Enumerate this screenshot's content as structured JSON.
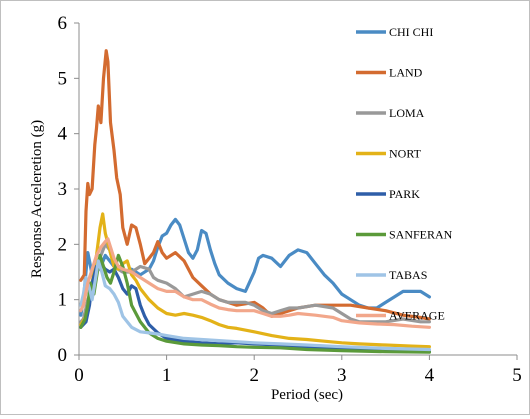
{
  "chart_data": {
    "type": "line",
    "title": "",
    "xlabel": "Period (sec)",
    "ylabel": "Response Acceleretion (g)",
    "xlim": [
      0,
      5
    ],
    "ylim": [
      0,
      6
    ],
    "xticks": [
      "0",
      "1",
      "2",
      "3",
      "4",
      "5"
    ],
    "yticks": [
      "0",
      "1",
      "2",
      "3",
      "4",
      "5",
      "6"
    ],
    "grid": false,
    "legend_placement": "right",
    "series": [
      {
        "name": "CHI CHI",
        "color": "#4a8bc4",
        "points": [
          [
            0.02,
            0.72
          ],
          [
            0.05,
            1.0
          ],
          [
            0.08,
            1.5
          ],
          [
            0.1,
            1.85
          ],
          [
            0.12,
            1.7
          ],
          [
            0.15,
            1.45
          ],
          [
            0.2,
            1.5
          ],
          [
            0.25,
            1.6
          ],
          [
            0.3,
            1.8
          ],
          [
            0.35,
            1.7
          ],
          [
            0.4,
            1.6
          ],
          [
            0.5,
            1.5
          ],
          [
            0.6,
            1.55
          ],
          [
            0.7,
            1.45
          ],
          [
            0.8,
            1.55
          ],
          [
            0.85,
            1.7
          ],
          [
            0.9,
            1.95
          ],
          [
            0.95,
            2.15
          ],
          [
            1.0,
            2.2
          ],
          [
            1.05,
            2.35
          ],
          [
            1.1,
            2.45
          ],
          [
            1.15,
            2.35
          ],
          [
            1.2,
            2.1
          ],
          [
            1.25,
            1.85
          ],
          [
            1.3,
            1.75
          ],
          [
            1.35,
            1.9
          ],
          [
            1.4,
            2.25
          ],
          [
            1.45,
            2.2
          ],
          [
            1.5,
            1.9
          ],
          [
            1.55,
            1.65
          ],
          [
            1.6,
            1.45
          ],
          [
            1.7,
            1.3
          ],
          [
            1.8,
            1.2
          ],
          [
            1.9,
            1.15
          ],
          [
            2.0,
            1.5
          ],
          [
            2.05,
            1.75
          ],
          [
            2.1,
            1.8
          ],
          [
            2.2,
            1.75
          ],
          [
            2.3,
            1.6
          ],
          [
            2.4,
            1.8
          ],
          [
            2.5,
            1.9
          ],
          [
            2.6,
            1.85
          ],
          [
            2.7,
            1.65
          ],
          [
            2.8,
            1.45
          ],
          [
            2.9,
            1.3
          ],
          [
            3.0,
            1.1
          ],
          [
            3.1,
            1.0
          ],
          [
            3.2,
            0.9
          ],
          [
            3.3,
            0.85
          ],
          [
            3.4,
            0.85
          ],
          [
            3.5,
            0.95
          ],
          [
            3.6,
            1.05
          ],
          [
            3.7,
            1.15
          ],
          [
            3.8,
            1.15
          ],
          [
            3.9,
            1.15
          ],
          [
            4.0,
            1.05
          ]
        ]
      },
      {
        "name": "LAND",
        "color": "#d36b30",
        "points": [
          [
            0.02,
            1.35
          ],
          [
            0.06,
            1.45
          ],
          [
            0.08,
            2.6
          ],
          [
            0.1,
            3.1
          ],
          [
            0.12,
            2.9
          ],
          [
            0.15,
            3.0
          ],
          [
            0.18,
            3.8
          ],
          [
            0.2,
            4.1
          ],
          [
            0.22,
            4.5
          ],
          [
            0.25,
            4.2
          ],
          [
            0.28,
            5.0
          ],
          [
            0.31,
            5.5
          ],
          [
            0.33,
            5.3
          ],
          [
            0.36,
            4.2
          ],
          [
            0.4,
            3.7
          ],
          [
            0.43,
            3.2
          ],
          [
            0.47,
            2.9
          ],
          [
            0.5,
            2.3
          ],
          [
            0.55,
            2.0
          ],
          [
            0.6,
            2.35
          ],
          [
            0.65,
            2.3
          ],
          [
            0.7,
            2.0
          ],
          [
            0.75,
            1.65
          ],
          [
            0.8,
            1.75
          ],
          [
            0.85,
            1.85
          ],
          [
            0.9,
            2.05
          ],
          [
            0.95,
            1.85
          ],
          [
            1.0,
            1.75
          ],
          [
            1.1,
            1.85
          ],
          [
            1.2,
            1.7
          ],
          [
            1.3,
            1.4
          ],
          [
            1.4,
            1.25
          ],
          [
            1.5,
            1.1
          ],
          [
            1.6,
            1.0
          ],
          [
            1.7,
            0.95
          ],
          [
            1.8,
            0.9
          ],
          [
            2.0,
            0.95
          ],
          [
            2.1,
            0.85
          ],
          [
            2.2,
            0.7
          ],
          [
            2.3,
            0.75
          ],
          [
            2.5,
            0.85
          ],
          [
            2.7,
            0.9
          ],
          [
            2.9,
            0.9
          ],
          [
            3.1,
            0.9
          ],
          [
            3.3,
            0.85
          ],
          [
            3.5,
            0.8
          ],
          [
            3.7,
            0.72
          ],
          [
            3.9,
            0.68
          ],
          [
            4.0,
            0.65
          ]
        ]
      },
      {
        "name": "LOMA",
        "color": "#999999",
        "points": [
          [
            0.02,
            0.6
          ],
          [
            0.05,
            0.65
          ],
          [
            0.08,
            0.85
          ],
          [
            0.1,
            1.0
          ],
          [
            0.15,
            1.2
          ],
          [
            0.2,
            1.6
          ],
          [
            0.25,
            1.8
          ],
          [
            0.3,
            2.0
          ],
          [
            0.35,
            1.9
          ],
          [
            0.4,
            1.6
          ],
          [
            0.5,
            1.5
          ],
          [
            0.6,
            1.5
          ],
          [
            0.7,
            1.6
          ],
          [
            0.8,
            1.55
          ],
          [
            0.85,
            1.4
          ],
          [
            0.9,
            1.35
          ],
          [
            1.0,
            1.3
          ],
          [
            1.1,
            1.2
          ],
          [
            1.2,
            1.05
          ],
          [
            1.3,
            1.1
          ],
          [
            1.4,
            1.15
          ],
          [
            1.5,
            1.1
          ],
          [
            1.6,
            1.0
          ],
          [
            1.7,
            0.95
          ],
          [
            1.8,
            0.95
          ],
          [
            1.9,
            0.95
          ],
          [
            2.0,
            0.9
          ],
          [
            2.1,
            0.8
          ],
          [
            2.2,
            0.75
          ],
          [
            2.3,
            0.8
          ],
          [
            2.4,
            0.85
          ],
          [
            2.5,
            0.85
          ],
          [
            2.7,
            0.9
          ],
          [
            2.9,
            0.85
          ],
          [
            3.0,
            0.75
          ],
          [
            3.1,
            0.65
          ],
          [
            3.2,
            0.6
          ],
          [
            3.3,
            0.6
          ],
          [
            3.5,
            0.6
          ],
          [
            3.7,
            0.65
          ],
          [
            3.9,
            0.6
          ],
          [
            4.0,
            0.6
          ]
        ]
      },
      {
        "name": "NORT",
        "color": "#e3b218",
        "points": [
          [
            0.02,
            0.55
          ],
          [
            0.08,
            0.7
          ],
          [
            0.12,
            1.0
          ],
          [
            0.16,
            1.4
          ],
          [
            0.2,
            1.8
          ],
          [
            0.24,
            2.3
          ],
          [
            0.27,
            2.55
          ],
          [
            0.3,
            2.2
          ],
          [
            0.35,
            1.9
          ],
          [
            0.4,
            1.6
          ],
          [
            0.45,
            1.55
          ],
          [
            0.5,
            1.65
          ],
          [
            0.55,
            1.7
          ],
          [
            0.6,
            1.45
          ],
          [
            0.65,
            1.35
          ],
          [
            0.7,
            1.2
          ],
          [
            0.8,
            1.0
          ],
          [
            0.9,
            0.85
          ],
          [
            1.0,
            0.75
          ],
          [
            1.1,
            0.72
          ],
          [
            1.2,
            0.75
          ],
          [
            1.3,
            0.72
          ],
          [
            1.4,
            0.68
          ],
          [
            1.5,
            0.62
          ],
          [
            1.6,
            0.55
          ],
          [
            1.7,
            0.5
          ],
          [
            1.8,
            0.48
          ],
          [
            2.0,
            0.42
          ],
          [
            2.2,
            0.35
          ],
          [
            2.4,
            0.3
          ],
          [
            2.6,
            0.28
          ],
          [
            2.8,
            0.25
          ],
          [
            3.0,
            0.22
          ],
          [
            3.2,
            0.2
          ],
          [
            3.5,
            0.18
          ],
          [
            3.8,
            0.16
          ],
          [
            4.0,
            0.15
          ]
        ]
      },
      {
        "name": "PARK",
        "color": "#2e5ea8",
        "points": [
          [
            0.02,
            0.5
          ],
          [
            0.08,
            0.6
          ],
          [
            0.12,
            0.9
          ],
          [
            0.15,
            1.3
          ],
          [
            0.2,
            1.6
          ],
          [
            0.25,
            1.65
          ],
          [
            0.3,
            1.55
          ],
          [
            0.35,
            1.5
          ],
          [
            0.4,
            1.55
          ],
          [
            0.45,
            1.4
          ],
          [
            0.5,
            1.2
          ],
          [
            0.55,
            1.1
          ],
          [
            0.6,
            1.25
          ],
          [
            0.65,
            1.2
          ],
          [
            0.7,
            0.9
          ],
          [
            0.75,
            0.7
          ],
          [
            0.8,
            0.55
          ],
          [
            0.9,
            0.4
          ],
          [
            1.0,
            0.3
          ],
          [
            1.2,
            0.25
          ],
          [
            1.4,
            0.22
          ],
          [
            1.6,
            0.2
          ],
          [
            1.8,
            0.22
          ],
          [
            2.0,
            0.2
          ],
          [
            2.3,
            0.18
          ],
          [
            2.6,
            0.15
          ],
          [
            2.9,
            0.12
          ],
          [
            3.2,
            0.1
          ],
          [
            3.5,
            0.08
          ],
          [
            4.0,
            0.06
          ]
        ]
      },
      {
        "name": "SANFERAN",
        "color": "#5b9a3a",
        "points": [
          [
            0.02,
            0.5
          ],
          [
            0.07,
            0.65
          ],
          [
            0.1,
            0.9
          ],
          [
            0.13,
            1.3
          ],
          [
            0.17,
            1.1
          ],
          [
            0.2,
            1.4
          ],
          [
            0.24,
            1.8
          ],
          [
            0.28,
            1.6
          ],
          [
            0.32,
            1.4
          ],
          [
            0.36,
            1.3
          ],
          [
            0.4,
            1.5
          ],
          [
            0.45,
            1.8
          ],
          [
            0.5,
            1.6
          ],
          [
            0.55,
            1.3
          ],
          [
            0.6,
            0.9
          ],
          [
            0.7,
            0.6
          ],
          [
            0.8,
            0.4
          ],
          [
            0.9,
            0.3
          ],
          [
            1.0,
            0.25
          ],
          [
            1.2,
            0.2
          ],
          [
            1.4,
            0.18
          ],
          [
            1.6,
            0.17
          ],
          [
            1.8,
            0.15
          ],
          [
            2.0,
            0.14
          ],
          [
            2.3,
            0.13
          ],
          [
            2.6,
            0.1
          ],
          [
            3.0,
            0.08
          ],
          [
            3.5,
            0.06
          ],
          [
            4.0,
            0.05
          ]
        ]
      },
      {
        "name": "TABAS",
        "color": "#9fc4e6",
        "points": [
          [
            0.02,
            0.9
          ],
          [
            0.05,
            1.1
          ],
          [
            0.08,
            1.4
          ],
          [
            0.12,
            1.2
          ],
          [
            0.15,
            1.0
          ],
          [
            0.18,
            1.3
          ],
          [
            0.22,
            1.7
          ],
          [
            0.26,
            1.5
          ],
          [
            0.3,
            1.25
          ],
          [
            0.35,
            1.2
          ],
          [
            0.4,
            1.1
          ],
          [
            0.45,
            0.95
          ],
          [
            0.5,
            0.7
          ],
          [
            0.6,
            0.5
          ],
          [
            0.7,
            0.42
          ],
          [
            0.8,
            0.4
          ],
          [
            0.9,
            0.38
          ],
          [
            1.0,
            0.35
          ],
          [
            1.2,
            0.3
          ],
          [
            1.4,
            0.28
          ],
          [
            1.6,
            0.26
          ],
          [
            1.8,
            0.24
          ],
          [
            2.0,
            0.22
          ],
          [
            2.3,
            0.2
          ],
          [
            2.6,
            0.18
          ],
          [
            3.0,
            0.15
          ],
          [
            3.5,
            0.12
          ],
          [
            4.0,
            0.1
          ]
        ]
      },
      {
        "name": "AVERAGE",
        "color": "#f2a78b",
        "points": [
          [
            0.02,
            0.8
          ],
          [
            0.05,
            0.9
          ],
          [
            0.1,
            1.3
          ],
          [
            0.15,
            1.55
          ],
          [
            0.2,
            1.8
          ],
          [
            0.25,
            1.95
          ],
          [
            0.3,
            2.05
          ],
          [
            0.33,
            2.1
          ],
          [
            0.36,
            1.95
          ],
          [
            0.4,
            1.75
          ],
          [
            0.45,
            1.6
          ],
          [
            0.5,
            1.55
          ],
          [
            0.6,
            1.5
          ],
          [
            0.7,
            1.4
          ],
          [
            0.8,
            1.3
          ],
          [
            0.9,
            1.2
          ],
          [
            1.0,
            1.15
          ],
          [
            1.1,
            1.15
          ],
          [
            1.2,
            1.05
          ],
          [
            1.3,
            1.0
          ],
          [
            1.4,
            1.0
          ],
          [
            1.5,
            0.92
          ],
          [
            1.6,
            0.85
          ],
          [
            1.7,
            0.82
          ],
          [
            1.8,
            0.8
          ],
          [
            1.9,
            0.8
          ],
          [
            2.0,
            0.8
          ],
          [
            2.1,
            0.75
          ],
          [
            2.2,
            0.7
          ],
          [
            2.3,
            0.7
          ],
          [
            2.4,
            0.72
          ],
          [
            2.5,
            0.75
          ],
          [
            2.7,
            0.72
          ],
          [
            2.9,
            0.68
          ],
          [
            3.0,
            0.62
          ],
          [
            3.2,
            0.58
          ],
          [
            3.4,
            0.56
          ],
          [
            3.6,
            0.55
          ],
          [
            3.8,
            0.52
          ],
          [
            4.0,
            0.5
          ]
        ]
      }
    ]
  }
}
